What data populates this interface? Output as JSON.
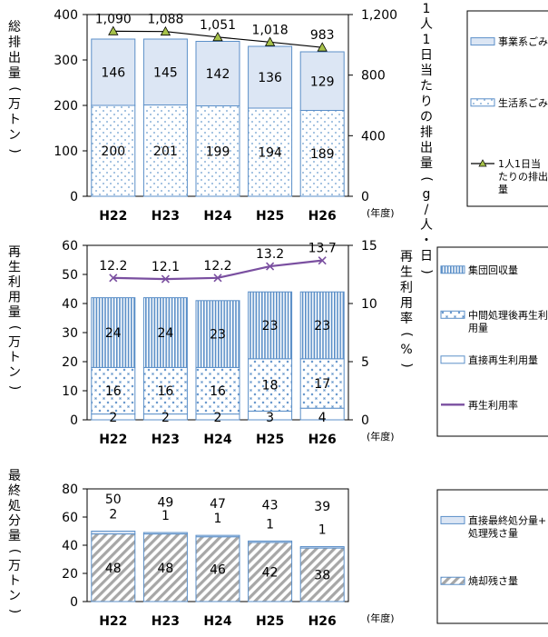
{
  "chart_data": [
    {
      "type": "bar",
      "categories": [
        "H22",
        "H23",
        "H24",
        "H25",
        "H26"
      ],
      "x_unit": "(年度)",
      "ylabel": "総排出量(万トン)",
      "ylim": [
        0,
        400
      ],
      "yticks": [
        0,
        100,
        200,
        300,
        400
      ],
      "y2label": "1人1日当たりの排出量(g/人・日)",
      "y2lim": [
        0,
        1200
      ],
      "y2ticks": [
        0,
        400,
        800,
        1200
      ],
      "series": [
        {
          "name": "生活系ごみ",
          "kind": "bar",
          "style": "dots",
          "values": [
            200,
            201,
            199,
            194,
            189
          ]
        },
        {
          "name": "事業系ごみ",
          "kind": "bar",
          "style": "solid-light-blue",
          "values": [
            146,
            145,
            142,
            136,
            129
          ]
        },
        {
          "name": "1人1日当たりの排出量",
          "kind": "line",
          "axis": "right",
          "marker": "triangle",
          "values": [
            1090,
            1088,
            1051,
            1018,
            983
          ]
        }
      ],
      "series_labels": [
        {
          "raw": "1,090"
        },
        {
          "raw": "1,088"
        },
        {
          "raw": "1,051"
        },
        {
          "raw": "1,018"
        },
        {
          "raw": "983"
        }
      ],
      "legend": [
        "事業系ごみ",
        "生活系ごみ",
        "1人1日当たりの排出量"
      ],
      "legend_position": "right"
    },
    {
      "type": "bar",
      "categories": [
        "H22",
        "H23",
        "H24",
        "H25",
        "H26"
      ],
      "x_unit": "(年度)",
      "ylabel": "再生利用量(万トン)",
      "ylim": [
        0,
        60
      ],
      "yticks": [
        0,
        10,
        20,
        30,
        40,
        50,
        60
      ],
      "y2label": "再生利用率(%)",
      "y2lim": [
        0,
        15
      ],
      "y2ticks": [
        0,
        5,
        10,
        15
      ],
      "series": [
        {
          "name": "直接再生利用量",
          "kind": "bar",
          "style": "white",
          "values": [
            2,
            2,
            2,
            3,
            4
          ]
        },
        {
          "name": "中間処理後再生利用量",
          "kind": "bar",
          "style": "cross-dots",
          "values": [
            16,
            16,
            16,
            18,
            17
          ]
        },
        {
          "name": "集団回収量",
          "kind": "bar",
          "style": "vertical-lines",
          "values": [
            24,
            24,
            23,
            23,
            23
          ]
        },
        {
          "name": "再生利用率",
          "kind": "line",
          "axis": "right",
          "marker": "x",
          "values": [
            12.2,
            12.1,
            12.2,
            13.2,
            13.7
          ]
        }
      ],
      "legend": [
        "集団回収量",
        "中間処理後再生利用量",
        "直接再生利用量",
        "再生利用率"
      ],
      "legend_position": "right"
    },
    {
      "type": "bar",
      "categories": [
        "H22",
        "H23",
        "H24",
        "H25",
        "H26"
      ],
      "x_unit": "(年度)",
      "ylabel": "最終処分量(万トン)",
      "ylim": [
        0,
        80
      ],
      "yticks": [
        0,
        20,
        40,
        60,
        80
      ],
      "series": [
        {
          "name": "焼却残さ量",
          "kind": "bar",
          "style": "diagonal",
          "values": [
            48,
            48,
            46,
            42,
            38
          ]
        },
        {
          "name": "直接最終処分量+処理残さ量",
          "kind": "bar",
          "style": "solid-light-blue",
          "values": [
            2,
            1,
            1,
            1,
            1
          ]
        }
      ],
      "totals": [
        50,
        49,
        47,
        43,
        39
      ],
      "legend": [
        "直接最終処分量+処理残さ量",
        "焼却残さ量"
      ],
      "legend_position": "right"
    }
  ]
}
